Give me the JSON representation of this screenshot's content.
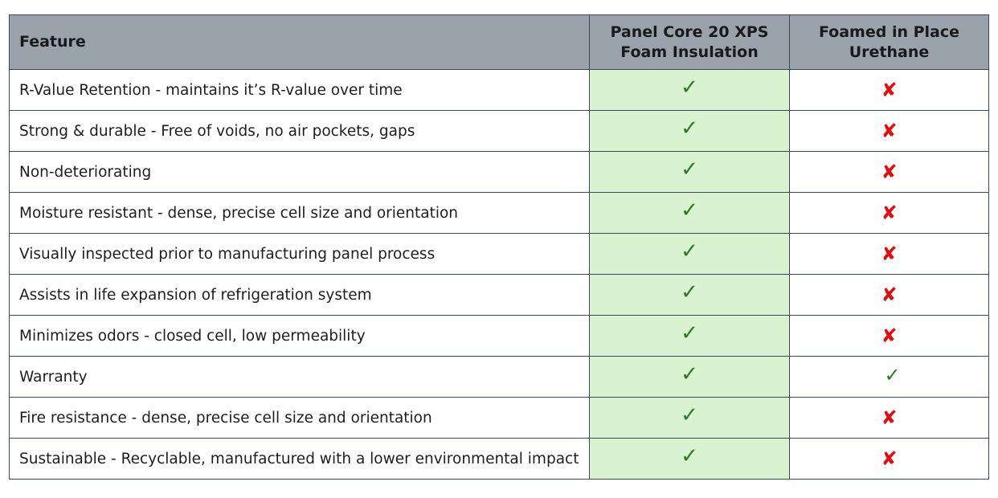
{
  "table": {
    "headers": {
      "feature": "Feature",
      "xps": [
        "Panel Core 20 XPS",
        "Foam Insulation"
      ],
      "urethane": [
        "Foamed in Place",
        "Urethane"
      ]
    },
    "rows": [
      {
        "feature": "R-Value Retention - maintains it’s R-value over time",
        "xps": true,
        "urethane": false
      },
      {
        "feature": "Strong & durable - Free of voids, no air pockets, gaps",
        "xps": true,
        "urethane": false
      },
      {
        "feature": "Non-deteriorating",
        "xps": true,
        "urethane": false
      },
      {
        "feature": "Moisture resistant - dense, precise cell size and orientation",
        "xps": true,
        "urethane": false
      },
      {
        "feature": "Visually inspected prior to manufacturing panel process",
        "xps": true,
        "urethane": false
      },
      {
        "feature": "Assists in life expansion of refrigeration system",
        "xps": true,
        "urethane": false
      },
      {
        "feature": "Minimizes odors - closed cell, low permeability",
        "xps": true,
        "urethane": false
      },
      {
        "feature": "Warranty",
        "xps": true,
        "urethane": true
      },
      {
        "feature": "Fire resistance - dense, precise cell size and orientation",
        "xps": true,
        "urethane": false
      },
      {
        "feature": "Sustainable - Recyclable, manufactured with a lower environmental impact",
        "xps": true,
        "urethane": false
      }
    ],
    "symbols": {
      "yes": "✓",
      "no": "✘",
      "yes_icon": "check-icon",
      "no_icon": "x-icon"
    },
    "colors": {
      "header_bg": "#9aa2ab",
      "xps_col_bg": "#d9f2d0",
      "check": "#2d7a22",
      "cross": "#e01010",
      "border": "#3a4a5e"
    }
  }
}
